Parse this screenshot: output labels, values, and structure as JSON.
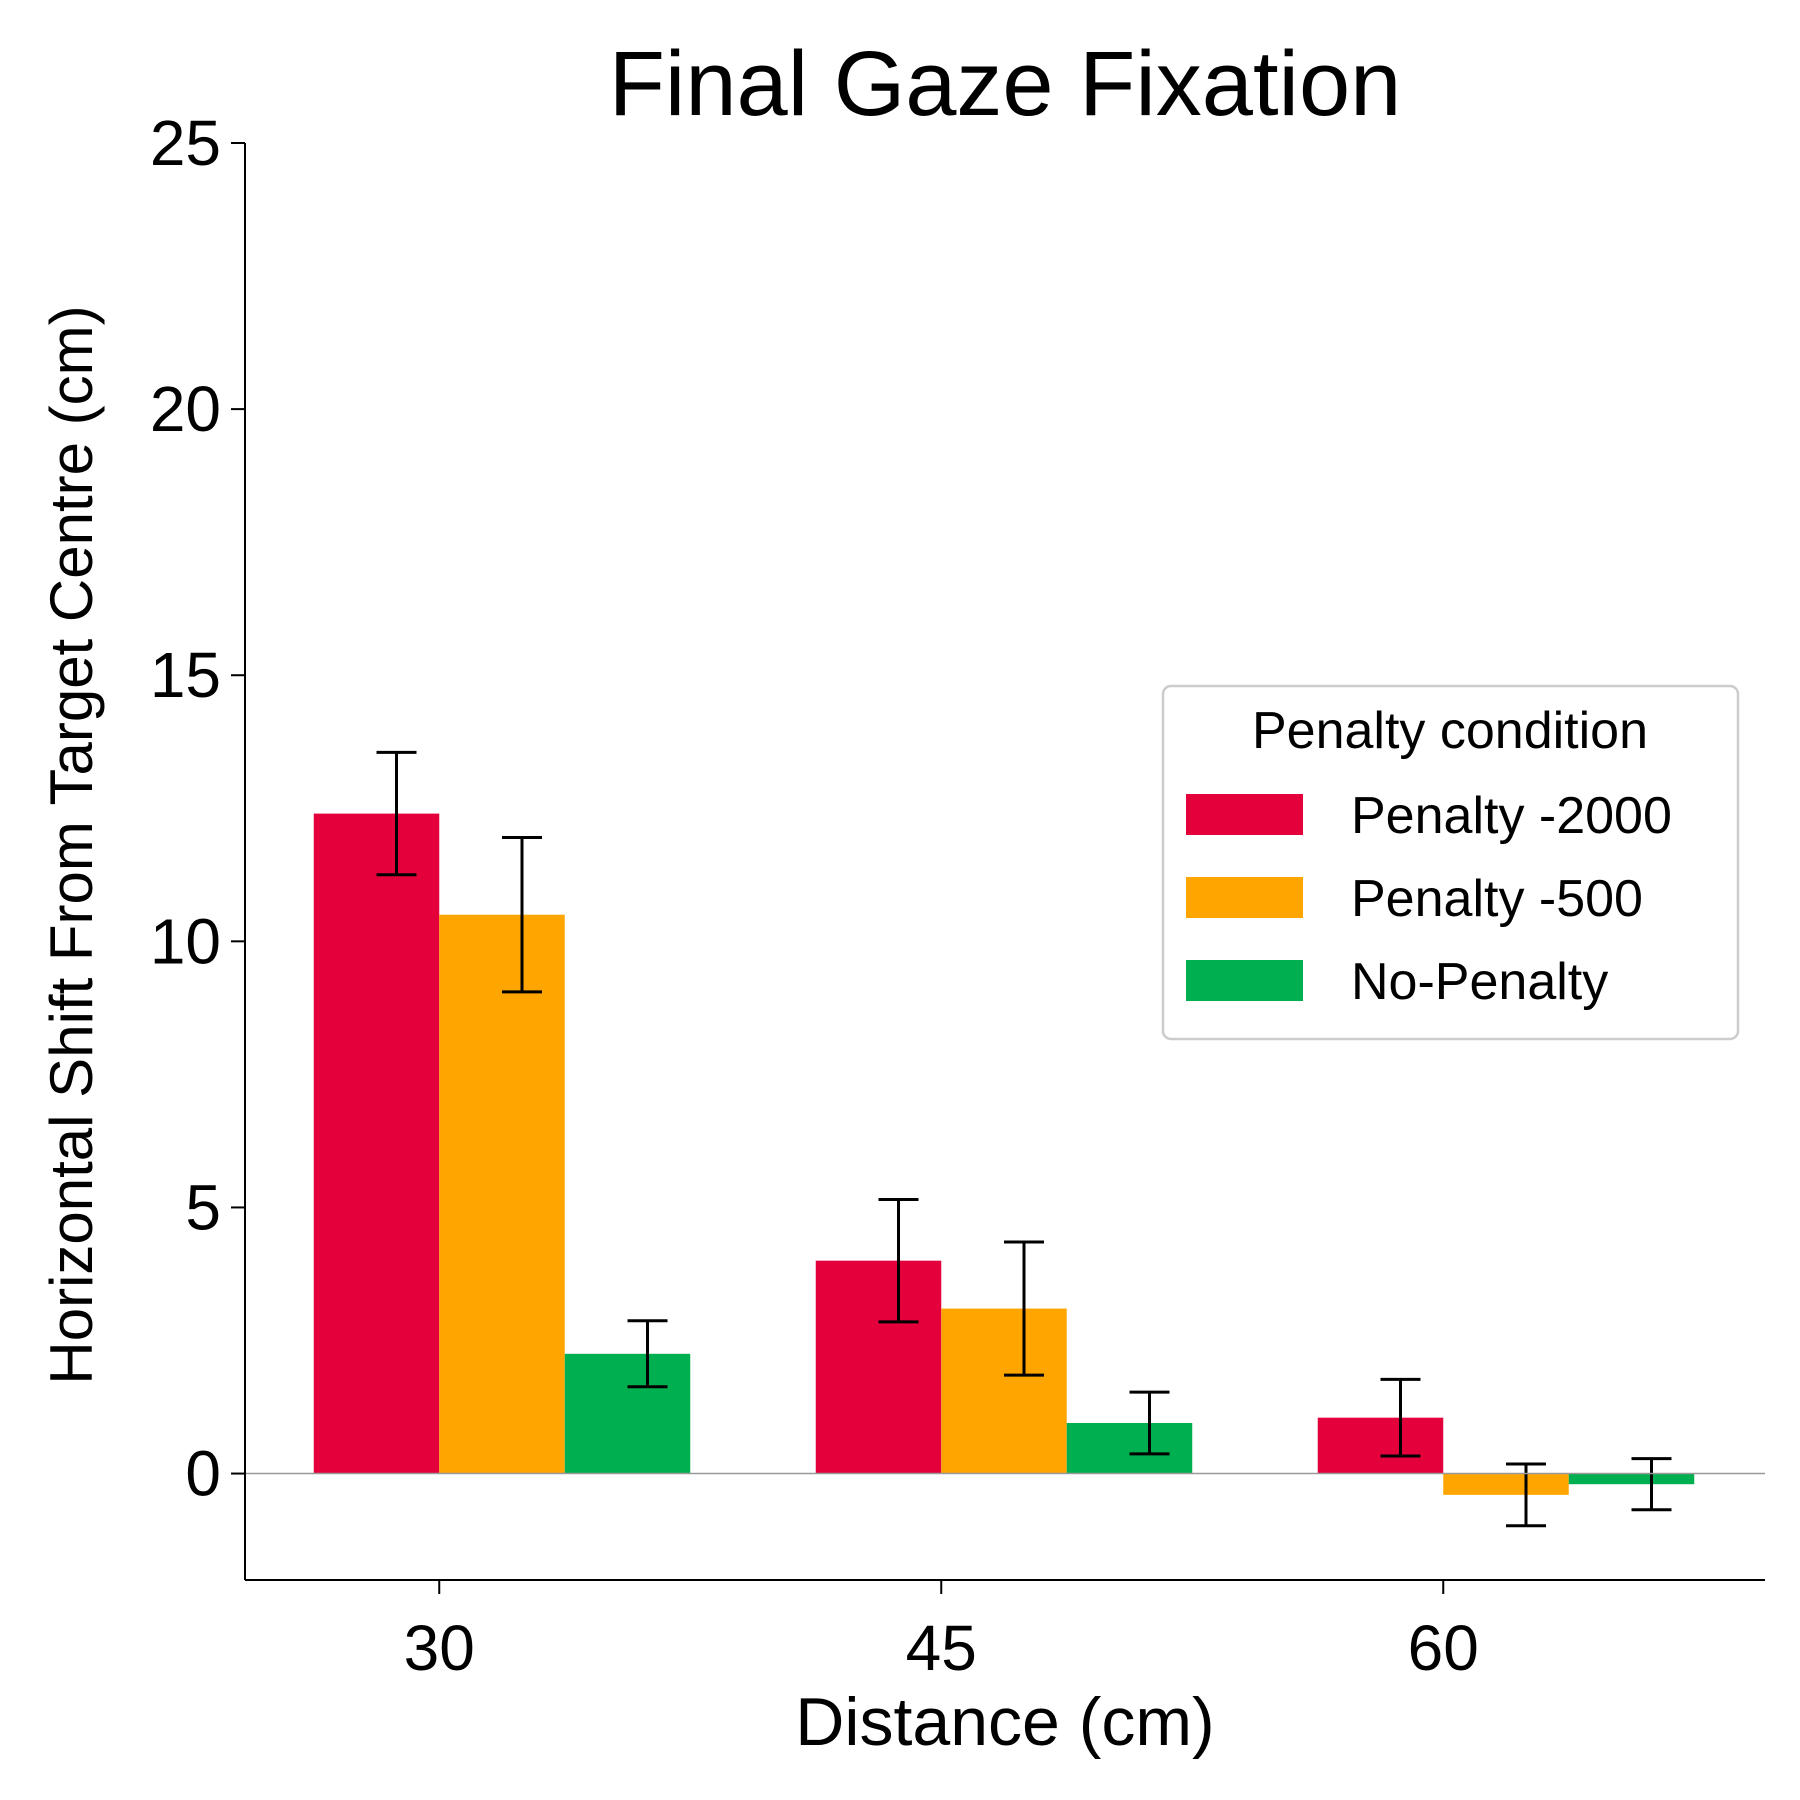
{
  "chart_data": {
    "type": "bar",
    "title": "Final Gaze Fixation",
    "xlabel": "Distance (cm)",
    "ylabel": "Horizontal Shift From Target Centre (cm)",
    "categories": [
      "30",
      "45",
      "60"
    ],
    "ylim": [
      -2,
      25
    ],
    "yticks": [
      0,
      5,
      10,
      15,
      20,
      25
    ],
    "grid": false,
    "zero_line": true,
    "legend": {
      "title": "Penalty condition",
      "position": "center-right"
    },
    "series": [
      {
        "name": "Penalty -2000",
        "color": "#E4003B",
        "values": [
          12.4,
          4.0,
          1.05
        ],
        "errors": [
          1.15,
          1.15,
          0.72
        ]
      },
      {
        "name": "Penalty -500",
        "color": "#FFA500",
        "values": [
          10.5,
          3.1,
          -0.4
        ],
        "errors": [
          1.45,
          1.25,
          0.58
        ]
      },
      {
        "name": "No-Penalty",
        "color": "#00B050",
        "values": [
          2.25,
          0.95,
          -0.2
        ],
        "errors": [
          0.62,
          0.58,
          0.48
        ]
      }
    ]
  }
}
